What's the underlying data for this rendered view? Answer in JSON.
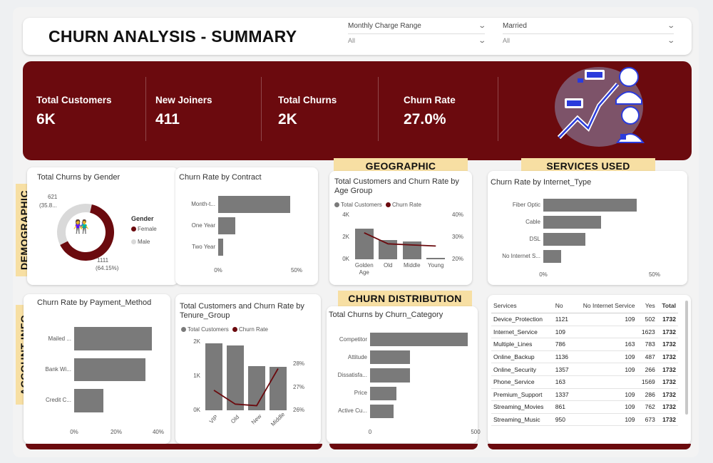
{
  "header": {
    "title": "CHURN ANALYSIS - SUMMARY",
    "slicers": [
      {
        "label": "Monthly Charge Range",
        "value": "All"
      },
      {
        "label": "Married",
        "value": "All"
      }
    ]
  },
  "kpis": [
    {
      "label": "Total Customers",
      "value": "6K"
    },
    {
      "label": "New Joiners",
      "value": "411"
    },
    {
      "label": "Total Churns",
      "value": "2K"
    },
    {
      "label": "Churn Rate",
      "value": "27.0%"
    }
  ],
  "sections": {
    "demographic": "DEMOGRAPHIC",
    "account_info": "ACCOUNT INFO",
    "geographic": "GEOGRAPHIC",
    "services_used": "SERVICES USED",
    "churn_distribution": "CHURN DISTRIBUTION"
  },
  "colors": {
    "brand": "#6b0a0e",
    "bar": "#7a7a7a",
    "female": "#6b0a0e",
    "male": "#d9d9d9",
    "section_label": "#f7dfa3"
  },
  "gender": {
    "title": "Total Churns by Gender",
    "legend_title": "Gender",
    "legend": [
      "Female",
      "Male"
    ],
    "male_label": "621",
    "male_pct": "(35.8...",
    "female_label": "1111",
    "female_pct": "(64.15%)"
  },
  "contract": {
    "title": "Churn Rate by Contract"
  },
  "age": {
    "title": "Total Customers and Churn Rate by Age Group",
    "legend": [
      "Total Customers",
      "Churn Rate"
    ]
  },
  "internet": {
    "title": "Churn Rate by Internet_Type"
  },
  "payment": {
    "title": "Churn Rate by Payment_Method"
  },
  "tenure": {
    "title": "Total Customers and Churn Rate by Tenure_Group",
    "legend": [
      "Total Customers",
      "Churn Rate"
    ]
  },
  "category": {
    "title": "Total Churns by Churn_Category"
  },
  "chart_data": [
    {
      "type": "pie",
      "title": "Total Churns by Gender",
      "categories": [
        "Female",
        "Male"
      ],
      "values": [
        1111,
        621
      ]
    },
    {
      "type": "bar",
      "title": "Churn Rate by Contract",
      "categories": [
        "Month-t...",
        "One Year",
        "Two Year"
      ],
      "values": [
        46,
        11,
        3
      ],
      "xticks": [
        "0%",
        "50%"
      ],
      "xlim": [
        0,
        50
      ]
    },
    {
      "type": "bar",
      "title": "Total Customers and Churn Rate by Age Group",
      "categories": [
        "Golden Age",
        "Old",
        "Middle",
        "Young"
      ],
      "series": [
        {
          "name": "Total Customers",
          "values": [
            2750,
            1750,
            1600,
            150
          ]
        },
        {
          "name": "Churn Rate",
          "values": [
            32,
            27,
            26.5,
            26
          ]
        }
      ],
      "yticks_left": [
        "0K",
        "2K",
        "4K"
      ],
      "ylim_left": [
        0,
        4000
      ],
      "yticks_right": [
        "20%",
        "30%",
        "40%"
      ],
      "ylim_right": [
        20,
        40
      ]
    },
    {
      "type": "bar",
      "title": "Churn Rate by Internet_Type",
      "categories": [
        "Fiber Optic",
        "Cable",
        "DSL",
        "No Internet S..."
      ],
      "values": [
        42,
        26,
        19,
        8
      ],
      "xticks": [
        "0%",
        "50%"
      ],
      "xlim": [
        0,
        50
      ]
    },
    {
      "type": "bar",
      "title": "Churn Rate by Payment_Method",
      "categories": [
        "Mailed ...",
        "Bank Wi...",
        "Credit C..."
      ],
      "values": [
        37,
        34,
        14
      ],
      "xticks": [
        "0%",
        "20%",
        "40%"
      ],
      "xlim": [
        0,
        40
      ]
    },
    {
      "type": "bar",
      "title": "Total Customers and Churn Rate by Tenure_Group",
      "categories": [
        "VIP",
        "Old",
        "New",
        "Middle"
      ],
      "series": [
        {
          "name": "Total Customers",
          "values": [
            1950,
            1900,
            1300,
            1280
          ]
        },
        {
          "name": "Churn Rate",
          "values": [
            26.8,
            25.9,
            25.8,
            28.2
          ]
        }
      ],
      "yticks_left": [
        "0K",
        "1K",
        "2K"
      ],
      "ylim_left": [
        0,
        2000
      ],
      "yticks_right": [
        "26%",
        "27%",
        "28%"
      ],
      "ylim_right": [
        25.5,
        28.5
      ]
    },
    {
      "type": "bar",
      "title": "Total Churns by Churn_Category",
      "categories": [
        "Competitor",
        "Attitude",
        "Dissatisfa...",
        "Price",
        "Active Cu..."
      ],
      "values": [
        740,
        300,
        300,
        200,
        180
      ],
      "xticks": [
        "0",
        "500"
      ],
      "xlim": [
        0,
        800
      ]
    },
    {
      "type": "table",
      "columns": [
        "Services",
        "No",
        "No Internet Service",
        "Yes",
        "Total"
      ],
      "rows": [
        [
          "Device_Protection",
          "1121",
          "109",
          "502",
          "1732"
        ],
        [
          "Internet_Service",
          "109",
          "",
          "1623",
          "1732"
        ],
        [
          "Multiple_Lines",
          "786",
          "163",
          "783",
          "1732"
        ],
        [
          "Online_Backup",
          "1136",
          "109",
          "487",
          "1732"
        ],
        [
          "Online_Security",
          "1357",
          "109",
          "266",
          "1732"
        ],
        [
          "Phone_Service",
          "163",
          "",
          "1569",
          "1732"
        ],
        [
          "Premium_Support",
          "1337",
          "109",
          "286",
          "1732"
        ],
        [
          "Streaming_Movies",
          "861",
          "109",
          "762",
          "1732"
        ],
        [
          "Streaming_Music",
          "950",
          "109",
          "673",
          "1732"
        ]
      ]
    }
  ]
}
